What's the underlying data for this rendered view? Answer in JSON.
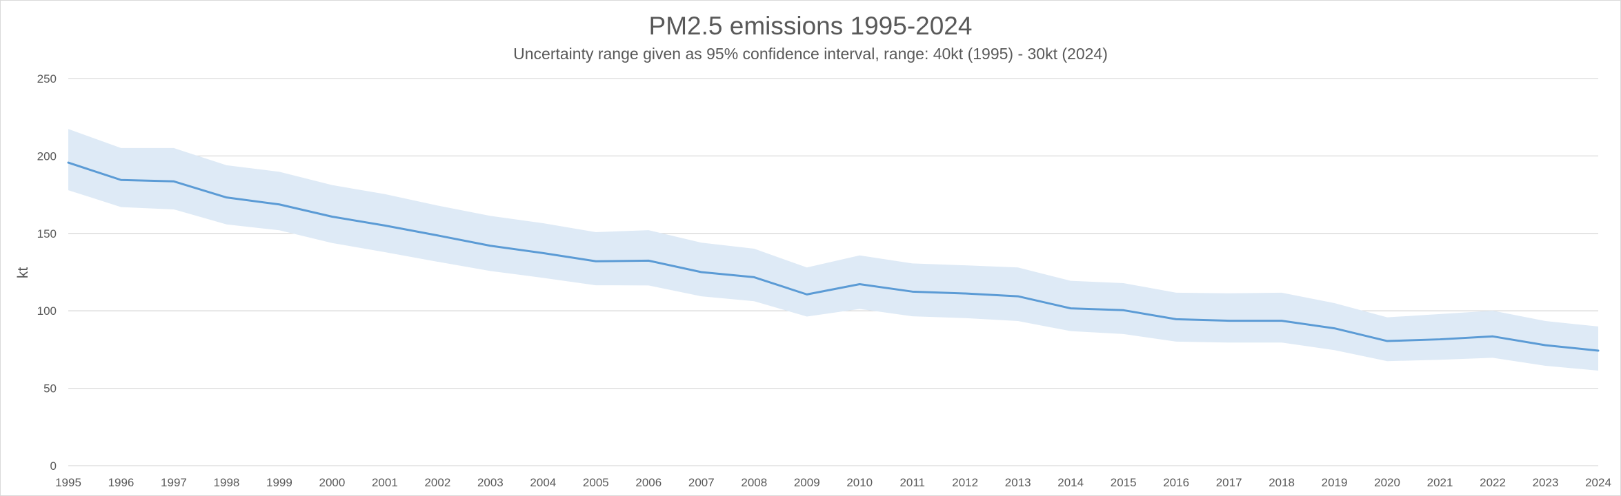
{
  "chart_data": {
    "type": "line",
    "title": "PM2.5 emissions 1995-2024",
    "subtitle": "Uncertainty range given as 95% confidence interval, range: 40kt (1995) - 30kt (2024)",
    "xlabel": "",
    "ylabel": "kt",
    "ylim": [
      0,
      250
    ],
    "yticks": [
      0,
      50,
      100,
      150,
      200,
      250
    ],
    "grid": true,
    "legend": "none",
    "x": [
      "1995",
      "1996",
      "1997",
      "1998",
      "1999",
      "2000",
      "2001",
      "2002",
      "2003",
      "2004",
      "2005",
      "2006",
      "2007",
      "2008",
      "2009",
      "2010",
      "2011",
      "2012",
      "2013",
      "2014",
      "2015",
      "2016",
      "2017",
      "2018",
      "2019",
      "2020",
      "2021",
      "2022",
      "2023",
      "2024"
    ],
    "series": [
      {
        "name": "PM2.5 emissions",
        "color": "#5b9bd5",
        "values": [
          195.7,
          184.5,
          183.6,
          173.2,
          168.7,
          160.8,
          155.1,
          148.7,
          142.0,
          137.3,
          132.0,
          132.4,
          125.0,
          121.7,
          110.6,
          117.2,
          112.4,
          111.2,
          109.4,
          101.6,
          100.4,
          94.6,
          93.6,
          93.6,
          88.7,
          80.5,
          81.6,
          83.5,
          77.8,
          74.3
        ]
      },
      {
        "name": "95% confidence interval lower",
        "values": [
          177.9,
          167.0,
          165.5,
          155.8,
          152.0,
          143.8,
          137.9,
          131.7,
          125.7,
          121.3,
          116.5,
          116.4,
          109.4,
          106.2,
          96.3,
          101.2,
          96.5,
          95.3,
          93.4,
          86.9,
          85.0,
          80.1,
          79.5,
          79.5,
          74.6,
          67.5,
          68.4,
          69.7,
          64.5,
          61.4
        ]
      },
      {
        "name": "95% confidence interval upper",
        "values": [
          217.4,
          205.1,
          205.1,
          194.0,
          189.8,
          181.2,
          175.4,
          168.0,
          161.3,
          156.6,
          150.8,
          152.1,
          144.0,
          140.1,
          128.0,
          135.8,
          130.6,
          129.4,
          128.0,
          119.4,
          117.9,
          111.7,
          111.3,
          111.7,
          105.0,
          95.8,
          97.9,
          100.1,
          93.4,
          89.9
        ]
      }
    ],
    "band_color": "#deeaf6"
  }
}
